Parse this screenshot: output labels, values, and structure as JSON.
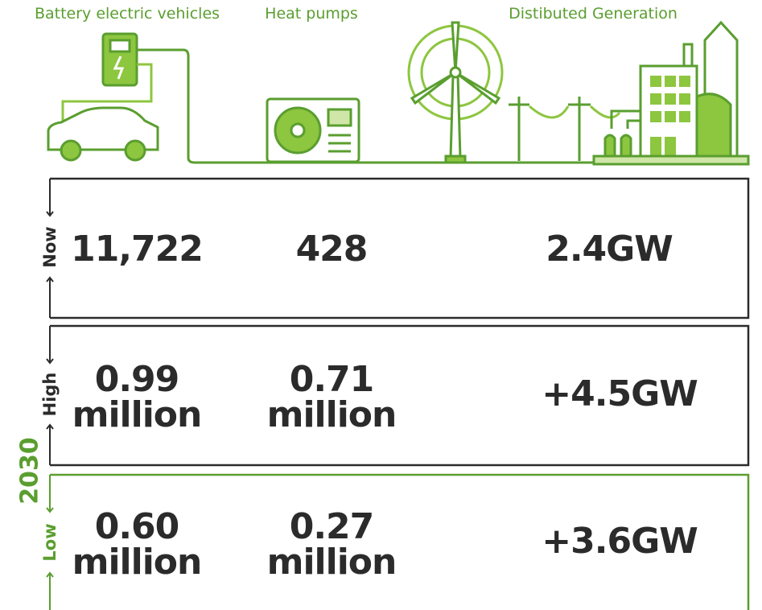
{
  "columns": [
    "Battery electric vehicles",
    "Heat pumps",
    "Distibuted Generation"
  ],
  "rows": [
    {
      "label": "Now",
      "values": [
        "11,722",
        "428",
        "2.4GW"
      ]
    },
    {
      "label": "High",
      "values": [
        "0.99 million",
        "0.71 million",
        "+4.5GW"
      ]
    },
    {
      "label": "Low",
      "values": [
        "0.60 million",
        "0.27 million",
        "+3.6GW"
      ]
    }
  ],
  "group_label": "2030"
}
